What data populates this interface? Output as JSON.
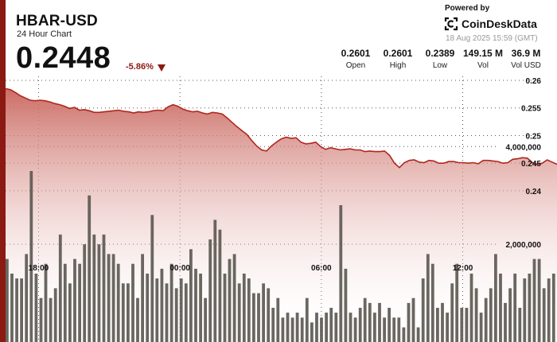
{
  "header": {
    "symbol": "HBAR-USD",
    "subtitle": "24 Hour Chart",
    "last_price": "0.2448",
    "change_pct": "-5.86%",
    "change_direction": "down",
    "powered_by": "Powered by",
    "brand": "CoinDeskData",
    "timestamp": "18 Aug 2025 15:59 (GMT)"
  },
  "stats": [
    {
      "value": "0.2601",
      "label": "Open"
    },
    {
      "value": "0.2601",
      "label": "High"
    },
    {
      "value": "0.2389",
      "label": "Low"
    },
    {
      "value": "149.15 M",
      "label": "Vol"
    },
    {
      "value": "36.9 M",
      "label": "Vol USD"
    }
  ],
  "colors": {
    "accent": "#8b1a12",
    "line": "#b0261c",
    "area_top": "#c9655d",
    "volume_bar": "#5a5650"
  },
  "chart_data": {
    "type": "area",
    "price_axis": {
      "ticks": [
        "0.26",
        "0.255",
        "0.25",
        "0.245",
        "0.24"
      ],
      "tick_values": [
        0.26,
        0.255,
        0.25,
        0.245,
        0.24
      ],
      "ylim": [
        0.23667,
        0.26
      ]
    },
    "volume_axis": {
      "ticks": [
        "4,000,000",
        "2,000,000"
      ],
      "tick_values": [
        4000000,
        2000000
      ],
      "ylim": [
        0,
        7000000
      ]
    },
    "x_ticks": [
      {
        "label": "18:00",
        "hour": 18
      },
      {
        "label": "00:00",
        "hour": 24
      },
      {
        "label": "06:00",
        "hour": 30
      },
      {
        "label": "12:00",
        "hour": 36
      }
    ],
    "x_range_hours": [
      16.6,
      40.0
    ],
    "grid": "dotted",
    "price": [
      0.2585,
      0.2583,
      0.2578,
      0.2572,
      0.2568,
      0.2564,
      0.2563,
      0.2564,
      0.2563,
      0.2561,
      0.2558,
      0.2556,
      0.2553,
      0.2549,
      0.2551,
      0.2546,
      0.2547,
      0.2545,
      0.2542,
      0.2542,
      0.2543,
      0.2544,
      0.2545,
      0.2546,
      0.2544,
      0.2543,
      0.2541,
      0.2543,
      0.2542,
      0.2543,
      0.2545,
      0.2546,
      0.2545,
      0.2552,
      0.2556,
      0.2553,
      0.2548,
      0.2545,
      0.2543,
      0.2544,
      0.2541,
      0.2539,
      0.2542,
      0.2541,
      0.2539,
      0.2532,
      0.2524,
      0.2516,
      0.2509,
      0.2502,
      0.2491,
      0.2481,
      0.2474,
      0.2472,
      0.2481,
      0.2488,
      0.2494,
      0.2497,
      0.2495,
      0.2496,
      0.2488,
      0.2485,
      0.2486,
      0.2488,
      0.248,
      0.2475,
      0.2478,
      0.2476,
      0.2474,
      0.2475,
      0.2476,
      0.2474,
      0.2474,
      0.2471,
      0.2472,
      0.2471,
      0.2471,
      0.2472,
      0.2464,
      0.245,
      0.2442,
      0.2451,
      0.2455,
      0.2456,
      0.2452,
      0.2451,
      0.2455,
      0.2454,
      0.245,
      0.245,
      0.2453,
      0.2453,
      0.2451,
      0.2451,
      0.245,
      0.2451,
      0.2449,
      0.2455,
      0.2455,
      0.2454,
      0.2453,
      0.245,
      0.2451,
      0.2457,
      0.2458,
      0.246,
      0.2459,
      0.2451,
      0.2448,
      0.245,
      0.2456,
      0.2452,
      0.2448
    ],
    "volume": [
      1700000,
      1400000,
      1300000,
      1300000,
      1800000,
      3500000,
      1400000,
      900000,
      1600000,
      900000,
      1100000,
      2200000,
      1600000,
      1200000,
      1700000,
      1600000,
      2000000,
      3000000,
      2200000,
      2000000,
      2200000,
      1800000,
      1800000,
      1600000,
      1200000,
      1200000,
      1600000,
      900000,
      1800000,
      1400000,
      2600000,
      1300000,
      1500000,
      1200000,
      1600000,
      1100000,
      1300000,
      1200000,
      1900000,
      1500000,
      1400000,
      900000,
      2100000,
      2500000,
      2300000,
      1400000,
      1700000,
      1800000,
      1200000,
      1400000,
      1300000,
      1000000,
      1000000,
      1200000,
      1100000,
      700000,
      900000,
      500000,
      600000,
      500000,
      600000,
      500000,
      900000,
      400000,
      600000,
      500000,
      600000,
      700000,
      600000,
      2800000,
      1500000,
      600000,
      500000,
      700000,
      900000,
      800000,
      600000,
      800000,
      500000,
      700000,
      500000,
      500000,
      300000,
      800000,
      900000,
      300000,
      1300000,
      1800000,
      1600000,
      700000,
      800000,
      600000,
      1200000,
      1600000,
      700000,
      700000,
      1400000,
      1100000,
      600000,
      900000,
      1100000,
      1800000,
      1400000,
      800000,
      1100000,
      1400000,
      700000,
      1300000,
      1400000,
      1700000,
      1700000,
      1100000,
      1300000,
      1400000
    ]
  }
}
